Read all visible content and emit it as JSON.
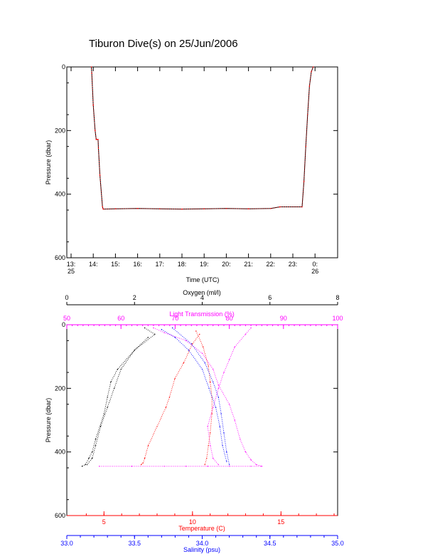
{
  "title": "Tiburon Dive(s) on 25/Jun/2006",
  "colors": {
    "axis": "#000000",
    "oxygen": "#000000",
    "light_transmission": "#ff00ff",
    "temperature": "#ff0000",
    "salinity": "#0000ff",
    "pressure_trace": "#ff0000"
  },
  "chart_data": [
    {
      "type": "line",
      "ylabel": "Pressure (dbar)",
      "xlabel": "Time (UTC)",
      "ylim": [
        600,
        0
      ],
      "yticks": [
        "0",
        "200",
        "400",
        "600"
      ],
      "xticks": [
        "13:",
        "14:",
        "15:",
        "16:",
        "17:",
        "18:",
        "19:",
        "20:",
        "21:",
        "22:",
        "23:",
        "0:"
      ],
      "xtick_dates": {
        "first": "25",
        "last": "26"
      },
      "grid": false,
      "series": [
        {
          "x": [
            "13:55",
            "13:56",
            "14:00",
            "14:05",
            "14:08",
            "14:10",
            "14:13",
            "14:14",
            "14:18",
            "14:25",
            "14:27",
            "15:00",
            "16:00",
            "17:00",
            "18:00",
            "19:00",
            "20:00",
            "21:00",
            "22:00",
            "22:25",
            "23:25",
            "23:30",
            "23:35",
            "23:40",
            "23:45",
            "23:50",
            "23:55"
          ],
          "y": [
            0,
            20,
            120,
            200,
            228,
            228,
            228,
            255,
            340,
            440,
            447,
            446,
            445,
            446,
            447,
            446,
            445,
            446,
            445,
            440,
            440,
            360,
            250,
            150,
            60,
            15,
            0
          ]
        }
      ]
    },
    {
      "type": "scatter",
      "ylabel": "Pressure (dbar)",
      "ylim": [
        600,
        0
      ],
      "yticks": [
        "0",
        "200",
        "400",
        "600"
      ],
      "grid": false,
      "axes": {
        "oxygen": {
          "label": "Oxygen (ml/l)",
          "range": [
            0,
            8
          ],
          "ticks": [
            "0",
            "2",
            "4",
            "6",
            "8"
          ]
        },
        "light_transmission": {
          "label": "Light Transmission (%)",
          "range": [
            50,
            100
          ],
          "ticks": [
            "50",
            "60",
            "70",
            "80",
            "90",
            "100"
          ]
        },
        "temperature": {
          "label": "Temperature (C)",
          "range": [
            2.9,
            18.2
          ],
          "ticks": [
            "5",
            "10",
            "15"
          ]
        },
        "salinity": {
          "label": "Salinity (psu)",
          "range": [
            33.0,
            35.0
          ],
          "ticks": [
            "33.0",
            "33.5",
            "34.0",
            "34.5",
            "35.0"
          ]
        }
      },
      "series": [
        {
          "name": "Oxygen (ml/l)",
          "axis": "oxygen",
          "profiles": [
            {
              "x": [
                2.4,
                2.0,
                1.5,
                1.3,
                1.2,
                1.1,
                0.85,
                0.75,
                0.65,
                0.55,
                0.45
              ],
              "y": [
                40,
                80,
                140,
                180,
                228,
                280,
                360,
                400,
                420,
                440,
                445
              ]
            },
            {
              "x": [
                2.3,
                2.6,
                2.0,
                1.6,
                1.4,
                1.2,
                1.0,
                0.85,
                0.75,
                0.6
              ],
              "y": [
                10,
                30,
                80,
                140,
                200,
                260,
                320,
                380,
                420,
                440
              ]
            }
          ]
        },
        {
          "name": "Light Transmission (%)",
          "axis": "light_transmission",
          "profiles": [
            {
              "x": [
                66,
                68,
                72,
                75,
                77,
                78,
                80,
                81,
                82,
                83,
                84,
                85,
                86
              ],
              "y": [
                10,
                25,
                50,
                90,
                140,
                190,
                250,
                300,
                360,
                400,
                425,
                440,
                445
              ]
            },
            {
              "x": [
                84,
                83,
                81,
                80,
                79,
                78,
                77,
                76,
                76.5,
                77,
                78
              ],
              "y": [
                10,
                30,
                70,
                110,
                150,
                200,
                260,
                320,
                380,
                420,
                440
              ]
            },
            {
              "x": [
                56,
                62,
                68,
                72,
                76,
                80,
                84,
                86
              ],
              "y": [
                445,
                445,
                445,
                445,
                445,
                445,
                445,
                445
              ]
            }
          ]
        },
        {
          "name": "Temperature (C)",
          "axis": "temperature",
          "profiles": [
            {
              "x": [
                10.4,
                10.0,
                9.5,
                9.0,
                8.7,
                8.5,
                8.0,
                7.5,
                7.3,
                7.2,
                7.1
              ],
              "y": [
                30,
                60,
                120,
                170,
                228,
                260,
                320,
                380,
                420,
                435,
                440
              ]
            },
            {
              "x": [
                10.2,
                10.6,
                10.9,
                11.0,
                11.1,
                11.1,
                11.0,
                10.9,
                10.8,
                10.7
              ],
              "y": [
                20,
                70,
                130,
                180,
                228,
                280,
                340,
                380,
                420,
                440
              ]
            }
          ]
        },
        {
          "name": "Salinity (psu)",
          "axis": "salinity",
          "profiles": [
            {
              "x": [
                33.78,
                33.92,
                34.02,
                34.08,
                34.12,
                34.14,
                34.16,
                34.18,
                34.2
              ],
              "y": [
                10,
                60,
                120,
                180,
                228,
                280,
                340,
                400,
                440
              ]
            },
            {
              "x": [
                33.7,
                33.8,
                33.9,
                34.0,
                34.05,
                34.1,
                34.13,
                34.15,
                34.18
              ],
              "y": [
                15,
                40,
                80,
                140,
                200,
                260,
                320,
                380,
                430
              ]
            }
          ]
        }
      ]
    }
  ]
}
